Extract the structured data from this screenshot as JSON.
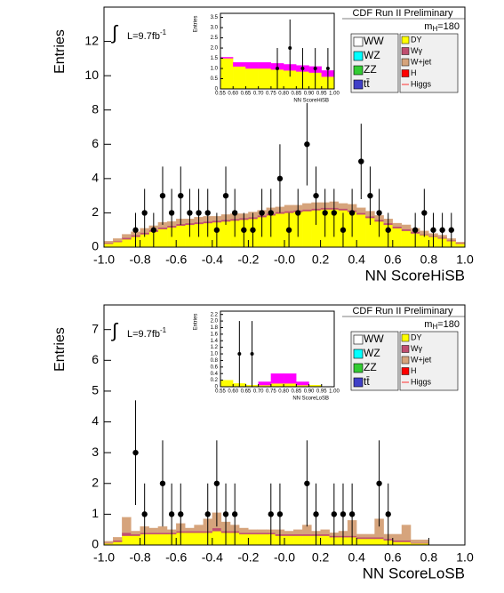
{
  "chart_data": [
    {
      "type": "histogram",
      "title": "CDF Run II Preliminary",
      "x_label": "NN ScoreHiSB",
      "y_label": "Entries",
      "integral": "∫",
      "luminosity": "L=9.7fb",
      "luminosity_exponent": "-1",
      "mass_symbol": "m",
      "mass_subscript": "H",
      "mass_value": "=180",
      "xlim": [
        -1,
        1
      ],
      "ylim": [
        0,
        14
      ],
      "xticks": [
        {
          "value": -1,
          "label": "-1.0"
        },
        -0.8,
        -0.6,
        -0.4,
        -0.2,
        {
          "value": 0,
          "label": "-0.0"
        },
        0.2,
        0.4,
        0.6,
        0.8,
        {
          "value": 1,
          "label": "1.0"
        }
      ],
      "yticks": [
        0,
        2,
        4,
        6,
        8,
        10,
        12
      ],
      "bins": [
        -1,
        -0.95,
        -0.9,
        -0.85,
        -0.8,
        -0.75,
        -0.7,
        -0.65,
        -0.6,
        -0.55,
        -0.5,
        -0.45,
        -0.4,
        -0.35,
        -0.3,
        -0.25,
        -0.2,
        -0.15,
        -0.1,
        -0.05,
        0,
        0.05,
        0.1,
        0.15,
        0.2,
        0.25,
        0.3,
        0.35,
        0.4,
        0.45,
        0.5,
        0.55,
        0.6,
        0.65,
        0.7,
        0.75,
        0.8,
        0.85,
        0.9,
        0.95,
        1
      ],
      "series": [
        {
          "name": "DY",
          "color": "#ffff00",
          "values": [
            0.2,
            0.3,
            0.45,
            0.6,
            0.75,
            0.9,
            1.05,
            1.15,
            1.25,
            1.3,
            1.35,
            1.4,
            1.45,
            1.5,
            1.55,
            1.6,
            1.65,
            1.75,
            1.85,
            1.95,
            2.0,
            2.05,
            2.1,
            2.15,
            2.2,
            2.2,
            2.15,
            2.05,
            1.9,
            1.7,
            1.5,
            1.3,
            1.1,
            0.95,
            0.8,
            0.7,
            0.6,
            0.5,
            0.35,
            0.2
          ]
        },
        {
          "name": "Wγ",
          "color": "#c04f70",
          "values": [
            0.05,
            0.05,
            0.1,
            0.1,
            0.1,
            0.1,
            0.1,
            0.1,
            0.1,
            0.1,
            0.1,
            0.1,
            0.1,
            0.1,
            0.1,
            0.1,
            0.1,
            0.1,
            0.1,
            0.1,
            0.1,
            0.1,
            0.1,
            0.1,
            0.1,
            0.1,
            0.1,
            0.1,
            0.1,
            0.1,
            0.1,
            0.1,
            0.1,
            0.1,
            0.1,
            0.05,
            0.05,
            0.05,
            0.05,
            0.05
          ]
        },
        {
          "name": "W+jet",
          "color": "#d6a47c",
          "values": [
            0.1,
            0.15,
            0.2,
            0.2,
            0.25,
            0.25,
            0.3,
            0.25,
            0.3,
            0.25,
            0.3,
            0.3,
            0.25,
            0.3,
            0.3,
            0.25,
            0.3,
            0.3,
            0.35,
            0.3,
            0.35,
            0.3,
            0.35,
            0.35,
            0.3,
            0.35,
            0.3,
            0.35,
            0.3,
            0.3,
            0.25,
            0.25,
            0.2,
            0.25,
            0.2,
            0.2,
            0.15,
            0.15,
            0.1,
            0.05
          ]
        }
      ],
      "legend_entries": [
        {
          "name": "WW",
          "color": "#ffffff"
        },
        {
          "name": "WZ",
          "color": "#00ffff"
        },
        {
          "name": "ZZ",
          "color": "#33cc33"
        },
        {
          "name": "tt̄",
          "color": "#4040c8"
        },
        {
          "name": "H",
          "color": "#ff0000"
        },
        {
          "name": "Higgs",
          "color": "#ff3030",
          "marker": "line"
        }
      ],
      "data_values": [
        null,
        null,
        null,
        1,
        2,
        1,
        3,
        2,
        3,
        2,
        2,
        2,
        1,
        3,
        2,
        1,
        1,
        2,
        2,
        4,
        1,
        2,
        6,
        3,
        2,
        2,
        1,
        2,
        5,
        3,
        2,
        1,
        null,
        null,
        1,
        2,
        1,
        1,
        1,
        null
      ],
      "data_errors": [
        null,
        null,
        null,
        1,
        1.4,
        1,
        1.7,
        1.4,
        1.7,
        1.4,
        1.4,
        1.4,
        1,
        1.7,
        1.4,
        1,
        1,
        1.4,
        1.4,
        2,
        1,
        1.4,
        2.4,
        1.7,
        1.4,
        1.4,
        1,
        1.4,
        2.2,
        1.7,
        1.4,
        1,
        null,
        null,
        1,
        1.4,
        1,
        1,
        1,
        null
      ],
      "inset": {
        "x_label": "NN ScoreHiSB",
        "y_label": "Entries",
        "xlim": [
          0.55,
          1
        ],
        "ylim": [
          0,
          3.7
        ],
        "xticks": [
          0.55,
          {
            "value": 0.6,
            "label": "0.60"
          },
          0.65,
          {
            "value": 0.7,
            "label": "0.70"
          },
          0.75,
          {
            "value": 0.8,
            "label": "0.80"
          },
          0.85,
          {
            "value": 0.9,
            "label": "0.90"
          },
          0.95,
          {
            "value": 1,
            "label": "1.00"
          }
        ],
        "yticks": [
          0,
          0.5,
          {
            "value": 1,
            "label": "1.0"
          },
          1.5,
          {
            "value": 2,
            "label": "2.0"
          },
          2.5,
          {
            "value": 3,
            "label": "3.0"
          },
          3.5
        ],
        "bins": [
          0.55,
          0.6,
          0.65,
          0.7,
          0.75,
          0.8,
          0.85,
          0.9,
          0.95,
          1
        ],
        "series": [
          {
            "color": "#ffff00",
            "values": [
              1.5,
              1.1,
              1.0,
              1.0,
              0.95,
              0.9,
              0.85,
              0.8,
              0.6
            ]
          },
          {
            "color": "#ff00ff",
            "values": [
              0.05,
              0.2,
              0.3,
              0.3,
              0.3,
              0.3,
              0.3,
              0.3,
              0.3
            ]
          }
        ],
        "data_values": [
          null,
          null,
          null,
          null,
          1,
          2,
          1,
          1,
          1
        ],
        "data_errors": [
          null,
          null,
          null,
          null,
          1,
          1.4,
          1,
          1,
          1
        ]
      }
    },
    {
      "type": "histogram",
      "title": "CDF Run II Preliminary",
      "x_label": "NN ScoreLoSB",
      "y_label": "Entries",
      "integral": "∫",
      "luminosity": "L=9.7fb",
      "luminosity_exponent": "-1",
      "mass_symbol": "m",
      "mass_subscript": "H",
      "mass_value": "=180",
      "xlim": [
        -1,
        1
      ],
      "ylim": [
        0,
        7.8
      ],
      "xticks": [
        {
          "value": -1,
          "label": "-1.0"
        },
        -0.8,
        -0.6,
        -0.4,
        -0.2,
        {
          "value": 0,
          "label": "-0.0"
        },
        0.2,
        0.4,
        0.6,
        0.8,
        {
          "value": 1,
          "label": "1.0"
        }
      ],
      "yticks": [
        0,
        1,
        2,
        3,
        4,
        5,
        6,
        7
      ],
      "bins": [
        -1,
        -0.95,
        -0.9,
        -0.85,
        -0.8,
        -0.75,
        -0.7,
        -0.65,
        -0.6,
        -0.55,
        -0.5,
        -0.45,
        -0.4,
        -0.35,
        -0.3,
        -0.25,
        -0.2,
        -0.15,
        -0.1,
        -0.05,
        0,
        0.05,
        0.1,
        0.15,
        0.2,
        0.25,
        0.3,
        0.35,
        0.4,
        0.45,
        0.5,
        0.55,
        0.6,
        0.65,
        0.7,
        0.75,
        0.8,
        0.85,
        0.9,
        0.95,
        1
      ],
      "series": [
        {
          "name": "DY",
          "color": "#ffff00",
          "values": [
            0.05,
            0.1,
            0.3,
            0.3,
            0.35,
            0.35,
            0.35,
            0.35,
            0.4,
            0.4,
            0.4,
            0.4,
            0.45,
            0.4,
            0.4,
            0.35,
            0.35,
            0.35,
            0.35,
            0.3,
            0.3,
            0.3,
            0.3,
            0.3,
            0.3,
            0.25,
            0.25,
            0.25,
            0.2,
            0.2,
            0.2,
            0.15,
            0.1,
            0.1,
            0.05,
            0.05,
            0,
            0,
            0,
            0
          ]
        },
        {
          "name": "Wγ",
          "color": "#c04f70",
          "values": [
            0.02,
            0.05,
            0.1,
            0.05,
            0.05,
            0.05,
            0.05,
            0.05,
            0.05,
            0.05,
            0.05,
            0.05,
            0.1,
            0.05,
            0.05,
            0.05,
            0.05,
            0.05,
            0.05,
            0.05,
            0.05,
            0.05,
            0.05,
            0.05,
            0.05,
            0.05,
            0.05,
            0.05,
            0.05,
            0.05,
            0.05,
            0.05,
            0.05,
            0.05,
            0.02,
            0.02,
            0,
            0,
            0,
            0
          ]
        },
        {
          "name": "W+jet",
          "color": "#d6a47c",
          "values": [
            0.05,
            0.1,
            0.5,
            0.1,
            0.2,
            0.15,
            0.2,
            0.1,
            0.25,
            0.1,
            0.2,
            0.4,
            0.5,
            0.3,
            0.2,
            0.15,
            0.1,
            0.1,
            0.1,
            0.15,
            0.1,
            0.15,
            0.3,
            0.1,
            0.15,
            0.1,
            0.15,
            0.5,
            0.1,
            0.1,
            0.6,
            0.15,
            0.2,
            0.5,
            0.1,
            0.1,
            0,
            0,
            0,
            0
          ]
        }
      ],
      "legend_entries": [
        {
          "name": "WW",
          "color": "#ffffff"
        },
        {
          "name": "WZ",
          "color": "#00ffff"
        },
        {
          "name": "ZZ",
          "color": "#33cc33"
        },
        {
          "name": "tt̄",
          "color": "#4040c8"
        },
        {
          "name": "H",
          "color": "#ff0000"
        },
        {
          "name": "Higgs",
          "color": "#ff3030",
          "marker": "line"
        }
      ],
      "data_values": [
        null,
        null,
        null,
        3,
        1,
        null,
        2,
        1,
        1,
        null,
        null,
        1,
        2,
        1,
        1,
        null,
        null,
        null,
        1,
        1,
        null,
        null,
        2,
        1,
        null,
        1,
        1,
        1,
        null,
        null,
        2,
        1,
        null,
        null,
        null,
        null,
        null,
        null,
        null,
        null
      ],
      "data_errors": [
        null,
        null,
        null,
        1.7,
        1,
        null,
        1.4,
        1,
        1,
        null,
        null,
        1,
        1.4,
        1,
        1,
        null,
        null,
        null,
        1,
        1,
        null,
        null,
        1.4,
        1,
        null,
        1,
        1,
        1,
        null,
        null,
        1.4,
        1,
        null,
        null,
        null,
        null,
        null,
        null,
        null,
        null
      ],
      "inset": {
        "x_label": "NN ScoreLoSB",
        "y_label": "Entries",
        "xlim": [
          0.55,
          1
        ],
        "ylim": [
          0,
          2.3
        ],
        "xticks": [
          0.55,
          {
            "value": 0.6,
            "label": "0.60"
          },
          0.65,
          {
            "value": 0.7,
            "label": "0.70"
          },
          0.75,
          {
            "value": 0.8,
            "label": "0.80"
          },
          0.85,
          {
            "value": 0.9,
            "label": "0.90"
          },
          0.95,
          {
            "value": 1,
            "label": "1.00"
          }
        ],
        "yticks": [
          0,
          0.2,
          0.4,
          0.6,
          0.8,
          {
            "value": 1,
            "label": "1.0"
          },
          1.2,
          1.4,
          1.6,
          1.8,
          {
            "value": 2,
            "label": "2.0"
          },
          2.2
        ],
        "bins": [
          0.55,
          0.6,
          0.65,
          0.7,
          0.75,
          0.8,
          0.85,
          0.9,
          0.95,
          1
        ],
        "series": [
          {
            "color": "#ffff00",
            "values": [
              0.2,
              0.1,
              0.05,
              0.05,
              0.1,
              0.1,
              0.05,
              0.05,
              0
            ]
          },
          {
            "color": "#ff00ff",
            "values": [
              0,
              0,
              0,
              0.1,
              0.3,
              0.3,
              0.1,
              0,
              0
            ]
          }
        ],
        "data_values": [
          null,
          1,
          1,
          null,
          null,
          null,
          null,
          null,
          null
        ],
        "data_errors": [
          null,
          1,
          1,
          null,
          null,
          null,
          null,
          null,
          null
        ]
      }
    }
  ]
}
